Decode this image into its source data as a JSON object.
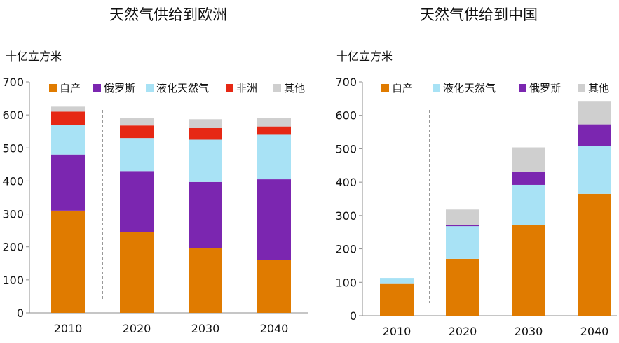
{
  "charts": [
    {
      "title": "天然气供给到欧洲",
      "unit_label": "十亿立方米",
      "type": "bar",
      "stacked": true,
      "categories": [
        "2010",
        "2020",
        "2030",
        "2040"
      ],
      "ylim": [
        0,
        700
      ],
      "yticks": [
        0,
        100,
        200,
        300,
        400,
        500,
        600,
        700
      ],
      "grid": false,
      "legend_placement": "top",
      "series": [
        {
          "name": "自产",
          "color": "#E07B00",
          "values": [
            310,
            245,
            197,
            160
          ]
        },
        {
          "name": "俄罗斯",
          "color": "#7B26B0",
          "values": [
            170,
            185,
            200,
            245
          ]
        },
        {
          "name": "液化天然气",
          "color": "#A8E2F5",
          "values": [
            90,
            100,
            128,
            135
          ]
        },
        {
          "name": "非洲",
          "color": "#E62814",
          "values": [
            40,
            38,
            35,
            25
          ]
        },
        {
          "name": "其他",
          "color": "#CFCFCF",
          "values": [
            15,
            22,
            27,
            25
          ]
        }
      ]
    },
    {
      "title": "天然气供给到中国",
      "unit_label": "十亿立方米",
      "type": "bar",
      "stacked": true,
      "categories": [
        "2010",
        "2020",
        "2030",
        "2040"
      ],
      "ylim": [
        0,
        700
      ],
      "yticks": [
        0,
        100,
        200,
        300,
        400,
        500,
        600,
        700
      ],
      "grid": false,
      "legend_placement": "top",
      "series": [
        {
          "name": "自产",
          "color": "#E07B00",
          "values": [
            95,
            170,
            272,
            365
          ]
        },
        {
          "name": "液化天然气",
          "color": "#A8E2F5",
          "values": [
            18,
            98,
            120,
            143
          ]
        },
        {
          "name": "俄罗斯",
          "color": "#7B26B0",
          "values": [
            0,
            3,
            40,
            65
          ]
        },
        {
          "name": "其他",
          "color": "#CFCFCF",
          "values": [
            0,
            47,
            72,
            70
          ]
        }
      ]
    }
  ]
}
